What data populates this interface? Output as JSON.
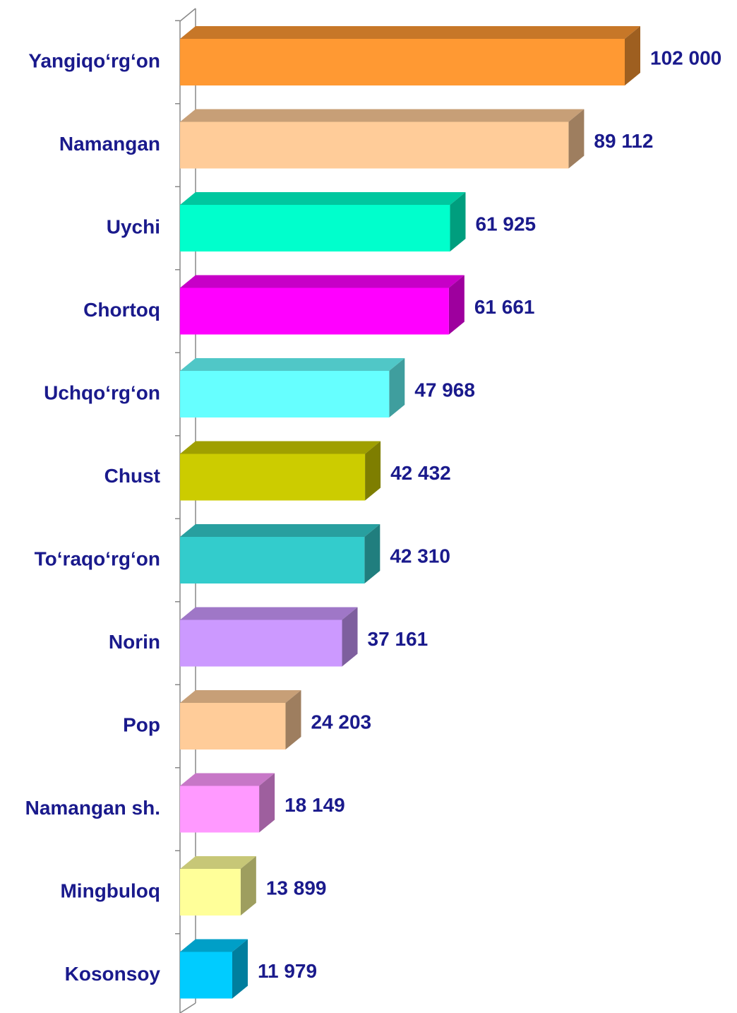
{
  "chart_data": {
    "type": "bar3d",
    "categories": [
      "Yangiqo‘rg‘on",
      "Namangan",
      "Uychi",
      "Chortoq",
      "Uchqo‘rg‘on",
      "Chust",
      "To‘raqo‘rg‘on",
      "Norin",
      "Pop",
      "Namangan sh.",
      "Mingbuloq",
      "Kosonsoy"
    ],
    "values": [
      102000,
      89112,
      61925,
      61661,
      47968,
      42432,
      42310,
      37161,
      24203,
      18149,
      13899,
      11979
    ],
    "value_labels": [
      "102 000",
      "89 112",
      "61 925",
      "61 661",
      "47 968",
      "42 432",
      "42 310",
      "37 161",
      "24 203",
      "18 149",
      "13 899",
      "11 979"
    ],
    "colors": [
      "#ff9933",
      "#ffcc99",
      "#00ffcc",
      "#ff00ff",
      "#66ffff",
      "#cccc00",
      "#33cccc",
      "#cc99ff",
      "#ffcc99",
      "#ff99ff",
      "#ffff99",
      "#00ccff"
    ]
  }
}
